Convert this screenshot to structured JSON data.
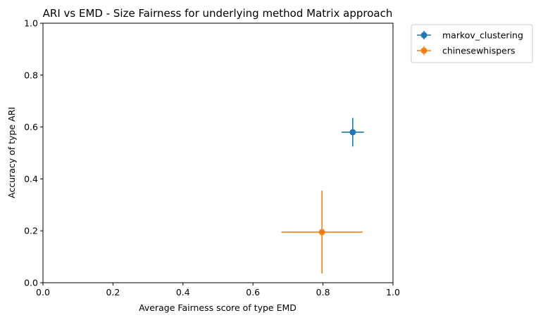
{
  "chart_data": {
    "type": "scatter",
    "title": "ARI vs EMD - Size Fairness for underlying method Matrix approach",
    "xlabel": "Average Fairness score of type EMD",
    "ylabel": "Accuracy of type ARI",
    "xlim": [
      0,
      1
    ],
    "ylim": [
      0,
      1
    ],
    "xticks": [
      "0.0",
      "0.2",
      "0.4",
      "0.6",
      "0.8",
      "1.0"
    ],
    "yticks": [
      "0.0",
      "0.2",
      "0.4",
      "0.6",
      "0.8",
      "1.0"
    ],
    "grid": false,
    "legend_position": "outside-top-right",
    "series": [
      {
        "name": "markov_clustering",
        "color": "#1f77b4",
        "x": 0.885,
        "y": 0.58,
        "xerr": 0.032,
        "yerr": 0.055
      },
      {
        "name": "chinesewhispers",
        "color": "#ff7f0e",
        "x": 0.797,
        "y": 0.195,
        "xerr": 0.116,
        "yerr": 0.16
      }
    ]
  }
}
